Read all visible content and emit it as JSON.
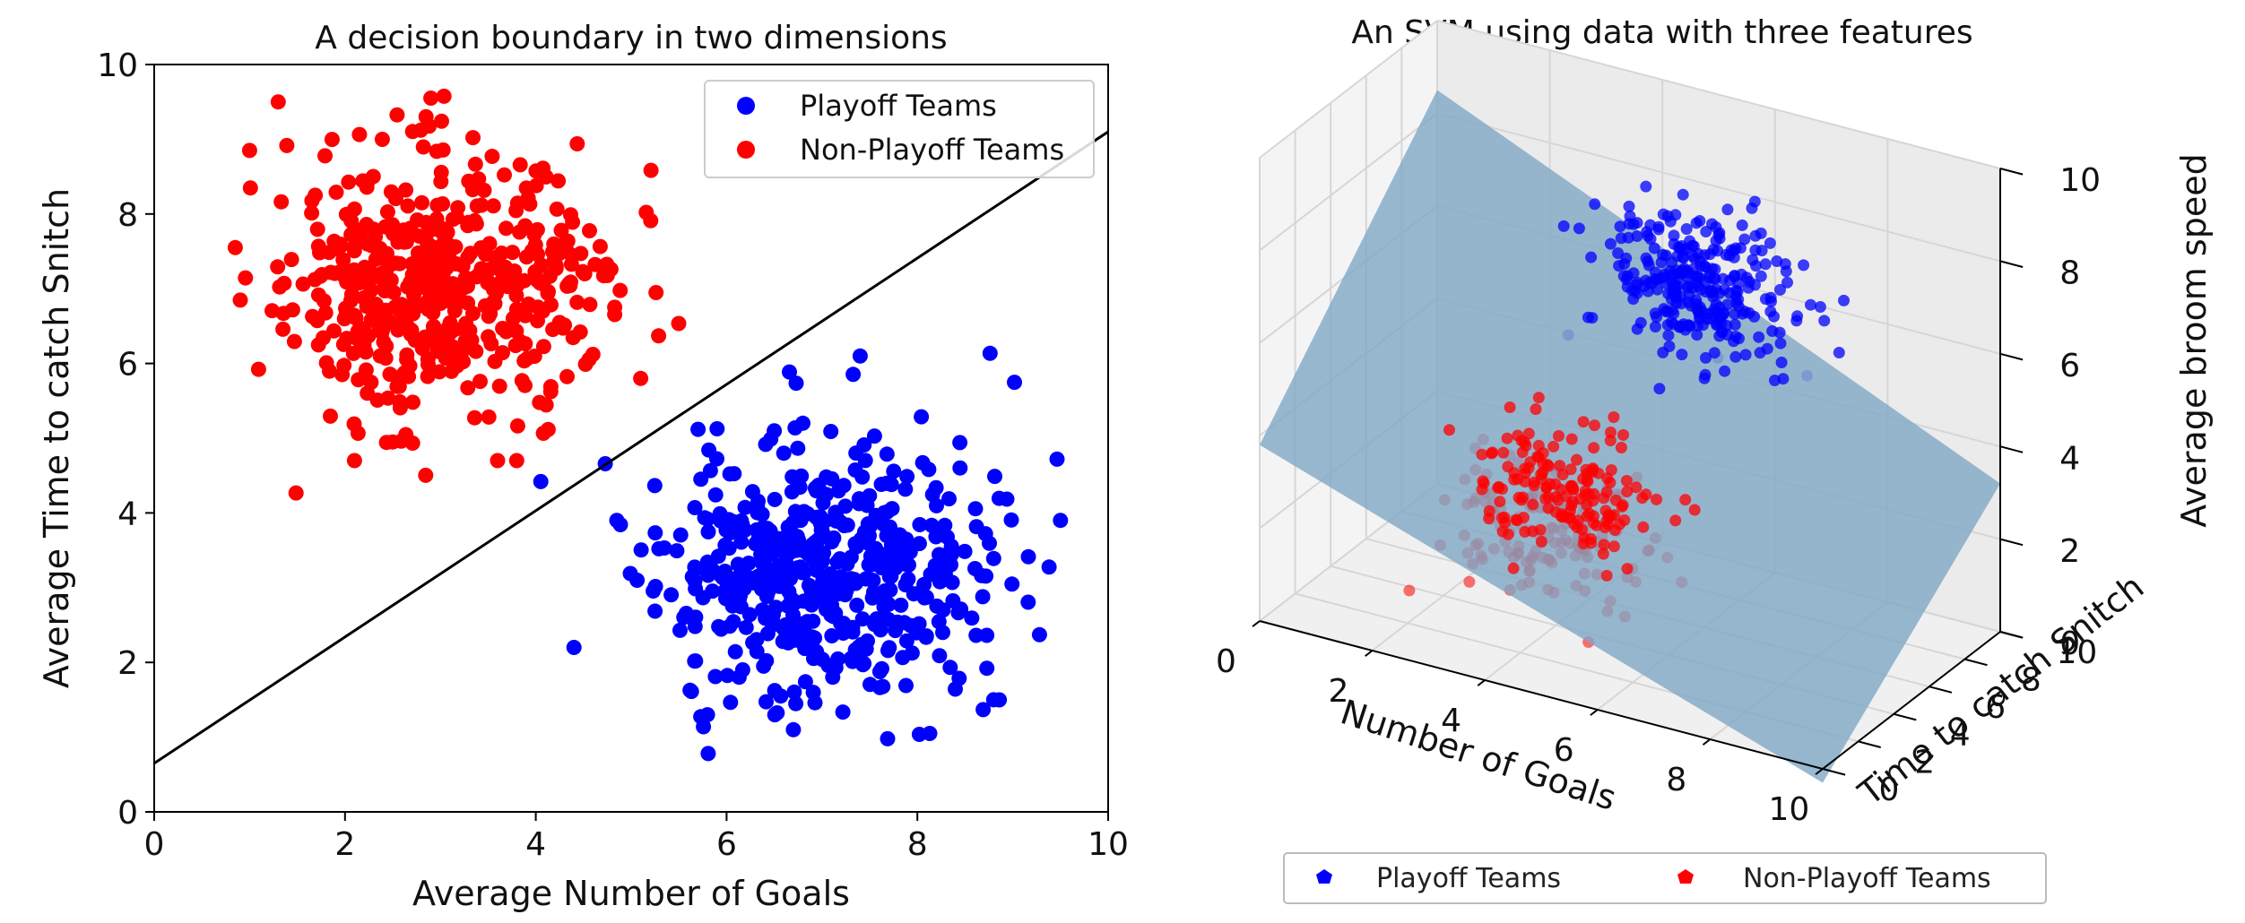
{
  "chart_data": [
    {
      "type": "scatter",
      "title": "A decision boundary in two dimensions",
      "xlabel": "Average Number of Goals",
      "ylabel": "Average Time to catch Snitch",
      "xlim": [
        0,
        10
      ],
      "ylim": [
        0,
        10
      ],
      "xticks": [
        "0",
        "2",
        "4",
        "6",
        "8",
        "10"
      ],
      "yticks": [
        "0",
        "2",
        "4",
        "6",
        "8",
        "10"
      ],
      "grid": false,
      "legend": "top-right",
      "series": [
        {
          "name": "Playoff Teams",
          "color": "#0000ff",
          "distribution": {
            "center": [
              7.0,
              3.2
            ],
            "std": [
              0.85,
              0.85
            ],
            "n": 500,
            "seed": 11
          },
          "points": [
            [
              7.4,
              6.1
            ],
            [
              9.5,
              3.9
            ],
            [
              4.4,
              2.2
            ],
            [
              6.7,
              1.1
            ],
            [
              6.5,
              5.1
            ],
            [
              6.8,
              5.2
            ],
            [
              5.8,
              1.3
            ],
            [
              8.8,
              1.5
            ],
            [
              4.85,
              3.9
            ]
          ]
        },
        {
          "name": "Non-Playoff Teams",
          "color": "#ff0000",
          "distribution": {
            "center": [
              3.0,
              7.1
            ],
            "std": [
              0.85,
              0.85
            ],
            "n": 500,
            "seed": 29
          },
          "points": [
            [
              1.3,
              9.5
            ],
            [
              2.9,
              9.55
            ],
            [
              0.85,
              7.55
            ],
            [
              5.1,
              5.8
            ],
            [
              2.1,
              4.7
            ],
            [
              2.5,
              4.95
            ],
            [
              3.6,
              4.7
            ],
            [
              3.8,
              4.7
            ],
            [
              1.0,
              8.85
            ]
          ]
        }
      ],
      "boundary": {
        "x": [
          0,
          10
        ],
        "y": [
          0.65,
          9.1
        ]
      }
    },
    {
      "type": "scatter",
      "title": "An SVM using data with three features",
      "xlabel": "Number of Goals",
      "ylabel": "Time to catch Snitch",
      "zlabel": "Average broom speed",
      "xlim": [
        0,
        10
      ],
      "ylim": [
        0,
        10
      ],
      "zlim": [
        0,
        10
      ],
      "xticks": [
        "0",
        "2",
        "4",
        "6",
        "8",
        "10"
      ],
      "yticks": [
        "0",
        "2",
        "4",
        "6",
        "8",
        "10"
      ],
      "zticks": [
        "0",
        "2",
        "4",
        "6",
        "8",
        "10"
      ],
      "grid": true,
      "legend": "bottom-center",
      "plane_color": "#7fa7c6",
      "series": [
        {
          "name": "Playoff Teams",
          "color": "#0000ff",
          "distribution": {
            "center": [
              5.5,
              7.5,
              6.8
            ],
            "std": [
              0.8,
              0.8,
              0.8
            ],
            "n": 300,
            "seed": 41
          }
        },
        {
          "name": "Non-Playoff Teams",
          "color": "#ff0000",
          "distribution": {
            "center": [
              4.5,
              2.5,
              3.0
            ],
            "std": [
              0.8,
              0.8,
              0.8
            ],
            "n": 300,
            "seed": 53
          }
        }
      ]
    }
  ]
}
